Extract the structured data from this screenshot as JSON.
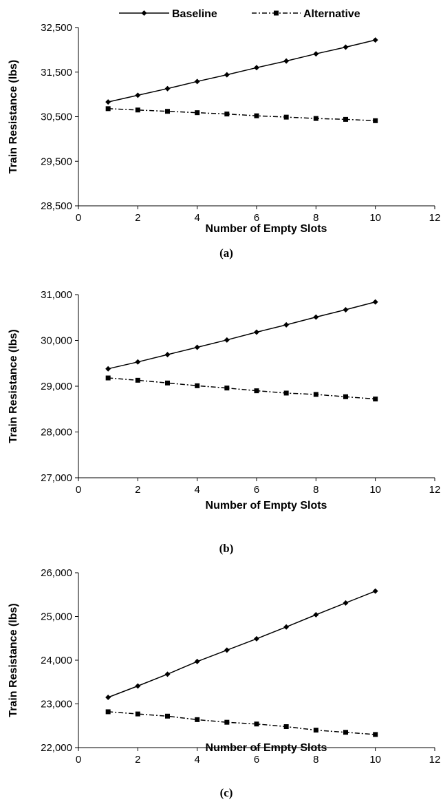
{
  "legend": [
    {
      "name": "Baseline",
      "line": "solid",
      "marker": "diamond"
    },
    {
      "name": "Alternative",
      "line": "dash-dot",
      "marker": "square"
    }
  ],
  "chart_data": [
    {
      "type": "line",
      "caption": "(a)",
      "xlabel": "Number of Empty Slots",
      "ylabel": "Train Resistance (lbs)",
      "xlim": [
        0,
        12
      ],
      "ylim": [
        28500,
        32500
      ],
      "x_ticks": [
        0,
        2,
        4,
        6,
        8,
        10,
        12
      ],
      "y_ticks": [
        28500,
        29500,
        30500,
        31500,
        32500
      ],
      "y_tick_labels": [
        "28,500",
        "29,500",
        "30,500",
        "31,500",
        "32,500"
      ],
      "grid": false,
      "legend_position": "top",
      "x": [
        1,
        2,
        3,
        4,
        5,
        6,
        7,
        8,
        9,
        10
      ],
      "series": [
        {
          "name": "Baseline",
          "values": [
            30830,
            30980,
            31130,
            31290,
            31440,
            31600,
            31750,
            31910,
            32060,
            32220
          ]
        },
        {
          "name": "Alternative",
          "values": [
            30680,
            30650,
            30620,
            30590,
            30560,
            30520,
            30490,
            30460,
            30440,
            30410
          ]
        }
      ]
    },
    {
      "type": "line",
      "caption": "(b)",
      "xlabel": "Number of Empty Slots",
      "ylabel": "Train Resistance (lbs)",
      "xlim": [
        0,
        12
      ],
      "ylim": [
        27000,
        31000
      ],
      "x_ticks": [
        0,
        2,
        4,
        6,
        8,
        10,
        12
      ],
      "y_ticks": [
        27000,
        28000,
        29000,
        30000,
        31000
      ],
      "y_tick_labels": [
        "27,000",
        "28,000",
        "29,000",
        "30,000",
        "31,000"
      ],
      "grid": false,
      "x": [
        1,
        2,
        3,
        4,
        5,
        6,
        7,
        8,
        9,
        10
      ],
      "series": [
        {
          "name": "Baseline",
          "values": [
            29380,
            29530,
            29690,
            29850,
            30010,
            30180,
            30340,
            30510,
            30670,
            30840
          ]
        },
        {
          "name": "Alternative",
          "values": [
            29180,
            29130,
            29070,
            29010,
            28960,
            28900,
            28850,
            28820,
            28770,
            28720
          ]
        }
      ]
    },
    {
      "type": "line",
      "caption": "(c)",
      "xlabel": "Number of Empty Slots",
      "ylabel": "Train Resistance (lbs)",
      "xlim": [
        0,
        12
      ],
      "ylim": [
        22000,
        26000
      ],
      "x_ticks": [
        0,
        2,
        4,
        6,
        8,
        10,
        12
      ],
      "y_ticks": [
        22000,
        23000,
        24000,
        25000,
        26000
      ],
      "y_tick_labels": [
        "22,000",
        "23,000",
        "24,000",
        "25,000",
        "26,000"
      ],
      "grid": false,
      "x": [
        1,
        2,
        3,
        4,
        5,
        6,
        7,
        8,
        9,
        10
      ],
      "series": [
        {
          "name": "Baseline",
          "values": [
            23150,
            23410,
            23680,
            23970,
            24230,
            24490,
            24760,
            25040,
            25310,
            25580
          ]
        },
        {
          "name": "Alternative",
          "values": [
            22820,
            22770,
            22720,
            22640,
            22580,
            22540,
            22480,
            22400,
            22350,
            22300
          ]
        }
      ]
    }
  ]
}
